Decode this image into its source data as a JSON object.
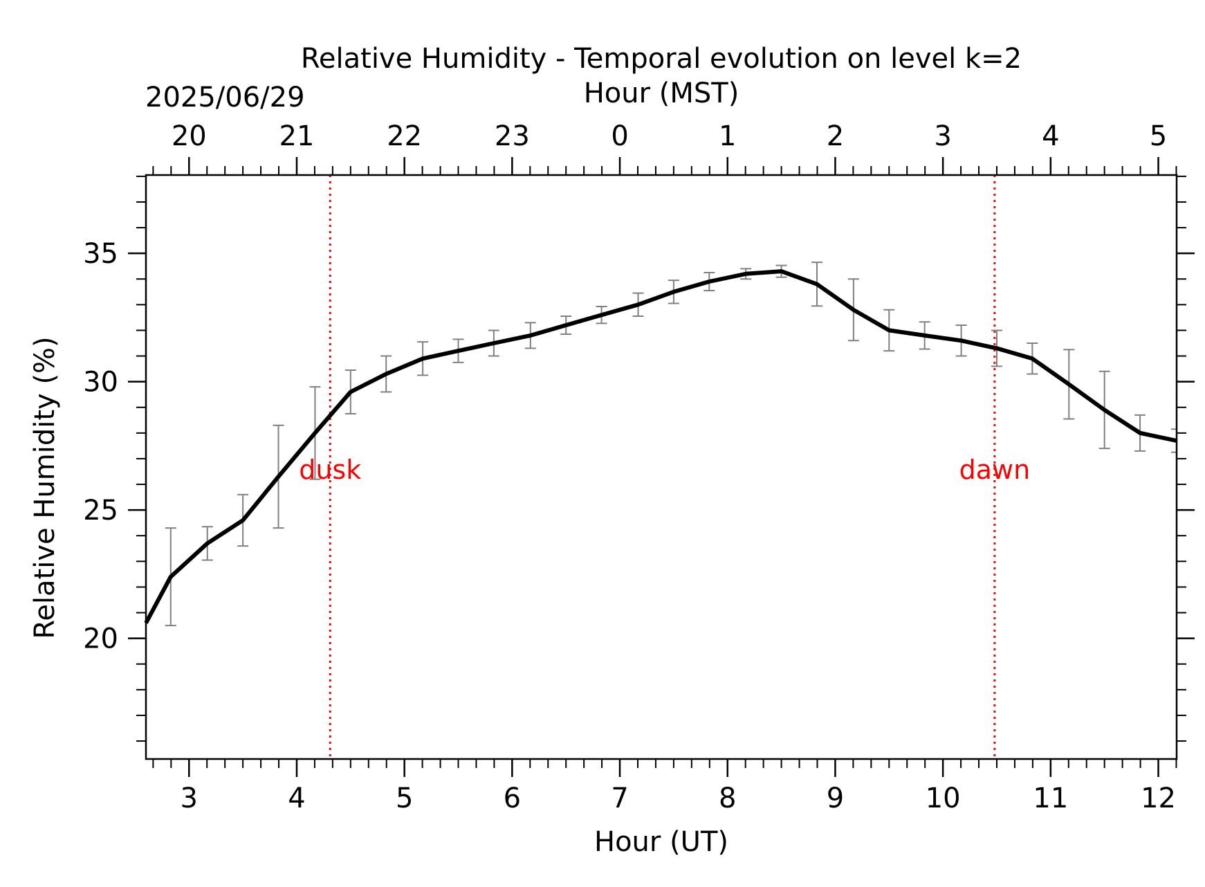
{
  "chart_data": {
    "type": "line",
    "title": "Relative Humidity - Temporal evolution on level k=2",
    "date_label": "2025/06/29",
    "xlabel": "Hour (UT)",
    "x2label": "Hour (MST)",
    "ylabel": "Relative Humidity (%)",
    "xlim": [
      2.6,
      12.17
    ],
    "ylim": [
      15.3,
      38.05
    ],
    "x_ticks": [
      3,
      4,
      5,
      6,
      7,
      8,
      9,
      10,
      11,
      12
    ],
    "x_tick_labels": [
      "3",
      "4",
      "5",
      "6",
      "7",
      "8",
      "9",
      "10",
      "11",
      "12"
    ],
    "x2_ticks": [
      3,
      4,
      5,
      6,
      7,
      8,
      9,
      10,
      11,
      12
    ],
    "x2_tick_labels": [
      "20",
      "21",
      "22",
      "23",
      "0",
      "1",
      "2",
      "3",
      "4",
      "5"
    ],
    "y_ticks": [
      20,
      25,
      30,
      35
    ],
    "y_tick_labels": [
      "20",
      "25",
      "30",
      "35"
    ],
    "grid": false,
    "series": [
      {
        "color": "#000000",
        "x": [
          2.6,
          2.83,
          3.17,
          3.5,
          3.83,
          4.17,
          4.5,
          4.83,
          5.17,
          5.5,
          5.83,
          6.17,
          6.5,
          6.83,
          7.17,
          7.5,
          7.83,
          8.17,
          8.5,
          8.83,
          9.17,
          9.5,
          9.83,
          10.17,
          10.5,
          10.83,
          11.17,
          11.5,
          11.83,
          12.17
        ],
        "y": [
          20.6,
          22.4,
          23.7,
          24.6,
          26.3,
          28.0,
          29.6,
          30.3,
          30.9,
          31.2,
          31.5,
          31.8,
          32.2,
          32.6,
          33.0,
          33.5,
          33.9,
          34.2,
          34.3,
          33.8,
          32.8,
          32.0,
          31.8,
          31.6,
          31.3,
          30.9,
          29.9,
          28.9,
          28.0,
          27.7
        ],
        "error": [
          0.0,
          1.9,
          0.65,
          1.0,
          2.0,
          1.8,
          0.85,
          0.7,
          0.65,
          0.45,
          0.5,
          0.5,
          0.35,
          0.33,
          0.45,
          0.45,
          0.35,
          0.2,
          0.23,
          0.85,
          1.2,
          0.8,
          0.53,
          0.6,
          0.7,
          0.6,
          1.35,
          1.5,
          0.7,
          0.45
        ]
      }
    ],
    "errorbar_color": "#808080",
    "events": [
      {
        "label": "dusk",
        "x": 4.31,
        "color": "#ff0000"
      },
      {
        "label": "dawn",
        "x": 10.48,
        "color": "#ff0000"
      }
    ],
    "event_label_y": 26.6
  }
}
